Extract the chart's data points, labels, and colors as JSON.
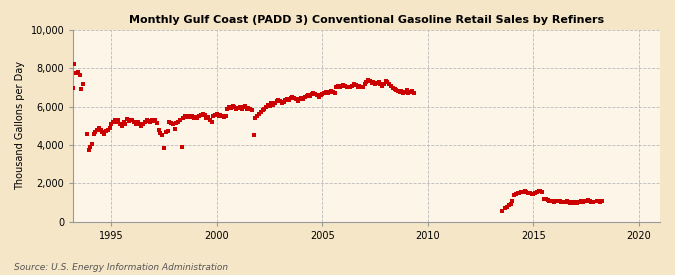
{
  "title": "Monthly Gulf Coast (PADD 3) Conventional Gasoline Retail Sales by Refiners",
  "ylabel": "Thousand Gallons per Day",
  "source": "Source: U.S. Energy Information Administration",
  "background_color": "#f5e6c8",
  "plot_bg_color": "#fdf6e8",
  "marker_color": "#cc0000",
  "ylim": [
    0,
    10000
  ],
  "yticks": [
    0,
    2000,
    4000,
    6000,
    8000,
    10000
  ],
  "ytick_labels": [
    "0",
    "2,000",
    "4,000",
    "6,000",
    "8,000",
    "10,000"
  ],
  "xticks": [
    1995,
    2000,
    2005,
    2010,
    2015,
    2020
  ],
  "xlim": [
    1993.2,
    2021.0
  ],
  "data": [
    [
      1993.17,
      6950
    ],
    [
      1993.25,
      8200
    ],
    [
      1993.33,
      7750
    ],
    [
      1993.42,
      7800
    ],
    [
      1993.5,
      7650
    ],
    [
      1993.58,
      6900
    ],
    [
      1993.67,
      7200
    ],
    [
      1993.83,
      4550
    ],
    [
      1993.92,
      3750
    ],
    [
      1994.0,
      3900
    ],
    [
      1994.08,
      4050
    ],
    [
      1994.17,
      4600
    ],
    [
      1994.25,
      4700
    ],
    [
      1994.33,
      4800
    ],
    [
      1994.42,
      4900
    ],
    [
      1994.5,
      4800
    ],
    [
      1994.58,
      4700
    ],
    [
      1994.67,
      4600
    ],
    [
      1994.75,
      4750
    ],
    [
      1994.83,
      4800
    ],
    [
      1994.92,
      4900
    ],
    [
      1995.0,
      5100
    ],
    [
      1995.08,
      5200
    ],
    [
      1995.17,
      5300
    ],
    [
      1995.25,
      5200
    ],
    [
      1995.33,
      5300
    ],
    [
      1995.42,
      5100
    ],
    [
      1995.5,
      5000
    ],
    [
      1995.58,
      5200
    ],
    [
      1995.67,
      5100
    ],
    [
      1995.75,
      5350
    ],
    [
      1995.83,
      5250
    ],
    [
      1995.92,
      5300
    ],
    [
      1996.0,
      5300
    ],
    [
      1996.08,
      5200
    ],
    [
      1996.17,
      5100
    ],
    [
      1996.25,
      5200
    ],
    [
      1996.33,
      5100
    ],
    [
      1996.42,
      5000
    ],
    [
      1996.5,
      5100
    ],
    [
      1996.58,
      5200
    ],
    [
      1996.67,
      5300
    ],
    [
      1996.75,
      5250
    ],
    [
      1996.83,
      5200
    ],
    [
      1996.92,
      5300
    ],
    [
      1997.0,
      5250
    ],
    [
      1997.08,
      5300
    ],
    [
      1997.17,
      5150
    ],
    [
      1997.25,
      4800
    ],
    [
      1997.33,
      4650
    ],
    [
      1997.42,
      4500
    ],
    [
      1997.5,
      3850
    ],
    [
      1997.58,
      4700
    ],
    [
      1997.67,
      4750
    ],
    [
      1997.75,
      5200
    ],
    [
      1997.83,
      5150
    ],
    [
      1997.92,
      5100
    ],
    [
      1998.0,
      4850
    ],
    [
      1998.08,
      5150
    ],
    [
      1998.17,
      5200
    ],
    [
      1998.25,
      5300
    ],
    [
      1998.33,
      3900
    ],
    [
      1998.42,
      5400
    ],
    [
      1998.5,
      5500
    ],
    [
      1998.58,
      5450
    ],
    [
      1998.67,
      5500
    ],
    [
      1998.75,
      5450
    ],
    [
      1998.83,
      5500
    ],
    [
      1998.92,
      5400
    ],
    [
      1999.0,
      5450
    ],
    [
      1999.08,
      5400
    ],
    [
      1999.17,
      5500
    ],
    [
      1999.25,
      5550
    ],
    [
      1999.33,
      5600
    ],
    [
      1999.42,
      5550
    ],
    [
      1999.5,
      5400
    ],
    [
      1999.58,
      5450
    ],
    [
      1999.67,
      5300
    ],
    [
      1999.75,
      5200
    ],
    [
      1999.83,
      5500
    ],
    [
      1999.92,
      5550
    ],
    [
      2000.0,
      5600
    ],
    [
      2000.08,
      5500
    ],
    [
      2000.17,
      5550
    ],
    [
      2000.25,
      5500
    ],
    [
      2000.33,
      5450
    ],
    [
      2000.42,
      5500
    ],
    [
      2000.5,
      5900
    ],
    [
      2000.58,
      6000
    ],
    [
      2000.67,
      5950
    ],
    [
      2000.75,
      6050
    ],
    [
      2000.83,
      6000
    ],
    [
      2000.92,
      5900
    ],
    [
      2001.0,
      5950
    ],
    [
      2001.08,
      6000
    ],
    [
      2001.17,
      5900
    ],
    [
      2001.25,
      6000
    ],
    [
      2001.33,
      6050
    ],
    [
      2001.42,
      5900
    ],
    [
      2001.5,
      5950
    ],
    [
      2001.58,
      5900
    ],
    [
      2001.67,
      5800
    ],
    [
      2001.75,
      4500
    ],
    [
      2001.83,
      5400
    ],
    [
      2001.92,
      5500
    ],
    [
      2002.0,
      5600
    ],
    [
      2002.08,
      5700
    ],
    [
      2002.17,
      5800
    ],
    [
      2002.25,
      5900
    ],
    [
      2002.33,
      6000
    ],
    [
      2002.42,
      6100
    ],
    [
      2002.5,
      6050
    ],
    [
      2002.58,
      6200
    ],
    [
      2002.67,
      6100
    ],
    [
      2002.75,
      6200
    ],
    [
      2002.83,
      6300
    ],
    [
      2002.92,
      6350
    ],
    [
      2003.0,
      6300
    ],
    [
      2003.08,
      6200
    ],
    [
      2003.17,
      6250
    ],
    [
      2003.25,
      6350
    ],
    [
      2003.33,
      6400
    ],
    [
      2003.42,
      6350
    ],
    [
      2003.5,
      6450
    ],
    [
      2003.58,
      6500
    ],
    [
      2003.67,
      6450
    ],
    [
      2003.75,
      6400
    ],
    [
      2003.83,
      6300
    ],
    [
      2003.92,
      6400
    ],
    [
      2004.0,
      6450
    ],
    [
      2004.08,
      6400
    ],
    [
      2004.17,
      6500
    ],
    [
      2004.25,
      6550
    ],
    [
      2004.33,
      6600
    ],
    [
      2004.42,
      6550
    ],
    [
      2004.5,
      6650
    ],
    [
      2004.58,
      6700
    ],
    [
      2004.67,
      6650
    ],
    [
      2004.75,
      6600
    ],
    [
      2004.83,
      6500
    ],
    [
      2004.92,
      6600
    ],
    [
      2005.0,
      6650
    ],
    [
      2005.08,
      6700
    ],
    [
      2005.17,
      6750
    ],
    [
      2005.25,
      6700
    ],
    [
      2005.33,
      6750
    ],
    [
      2005.42,
      6800
    ],
    [
      2005.5,
      6750
    ],
    [
      2005.58,
      6700
    ],
    [
      2005.67,
      7050
    ],
    [
      2005.75,
      7100
    ],
    [
      2005.83,
      7050
    ],
    [
      2005.92,
      7100
    ],
    [
      2006.0,
      7150
    ],
    [
      2006.08,
      7100
    ],
    [
      2006.17,
      7050
    ],
    [
      2006.25,
      7000
    ],
    [
      2006.33,
      7050
    ],
    [
      2006.42,
      7100
    ],
    [
      2006.5,
      7200
    ],
    [
      2006.58,
      7150
    ],
    [
      2006.67,
      7050
    ],
    [
      2006.75,
      7100
    ],
    [
      2006.83,
      7000
    ],
    [
      2006.92,
      7050
    ],
    [
      2007.0,
      7200
    ],
    [
      2007.08,
      7300
    ],
    [
      2007.17,
      7400
    ],
    [
      2007.25,
      7350
    ],
    [
      2007.33,
      7250
    ],
    [
      2007.42,
      7300
    ],
    [
      2007.5,
      7200
    ],
    [
      2007.58,
      7250
    ],
    [
      2007.67,
      7300
    ],
    [
      2007.75,
      7200
    ],
    [
      2007.83,
      7100
    ],
    [
      2007.92,
      7200
    ],
    [
      2008.0,
      7350
    ],
    [
      2008.08,
      7300
    ],
    [
      2008.17,
      7200
    ],
    [
      2008.25,
      7100
    ],
    [
      2008.33,
      6950
    ],
    [
      2008.42,
      6900
    ],
    [
      2008.5,
      6850
    ],
    [
      2008.58,
      6800
    ],
    [
      2008.67,
      6750
    ],
    [
      2008.75,
      6800
    ],
    [
      2008.83,
      6700
    ],
    [
      2008.92,
      6750
    ],
    [
      2009.0,
      6850
    ],
    [
      2009.08,
      6700
    ],
    [
      2009.17,
      6750
    ],
    [
      2009.25,
      6800
    ],
    [
      2009.33,
      6700
    ],
    [
      2013.5,
      550
    ],
    [
      2013.67,
      700
    ],
    [
      2013.75,
      750
    ],
    [
      2013.83,
      850
    ],
    [
      2013.92,
      900
    ],
    [
      2014.0,
      1100
    ],
    [
      2014.08,
      1400
    ],
    [
      2014.17,
      1450
    ],
    [
      2014.25,
      1500
    ],
    [
      2014.33,
      1500
    ],
    [
      2014.42,
      1550
    ],
    [
      2014.5,
      1550
    ],
    [
      2014.58,
      1600
    ],
    [
      2014.67,
      1550
    ],
    [
      2014.75,
      1500
    ],
    [
      2014.83,
      1500
    ],
    [
      2014.92,
      1450
    ],
    [
      2015.0,
      1450
    ],
    [
      2015.08,
      1500
    ],
    [
      2015.17,
      1550
    ],
    [
      2015.25,
      1600
    ],
    [
      2015.33,
      1600
    ],
    [
      2015.42,
      1550
    ],
    [
      2015.5,
      1200
    ],
    [
      2015.58,
      1200
    ],
    [
      2015.67,
      1150
    ],
    [
      2015.75,
      1100
    ],
    [
      2015.83,
      1100
    ],
    [
      2015.92,
      1100
    ],
    [
      2016.0,
      1050
    ],
    [
      2016.08,
      1100
    ],
    [
      2016.17,
      1100
    ],
    [
      2016.25,
      1100
    ],
    [
      2016.33,
      1050
    ],
    [
      2016.42,
      1050
    ],
    [
      2016.5,
      1050
    ],
    [
      2016.58,
      1100
    ],
    [
      2016.67,
      1050
    ],
    [
      2016.75,
      1000
    ],
    [
      2016.83,
      1050
    ],
    [
      2016.92,
      1000
    ],
    [
      2017.0,
      1050
    ],
    [
      2017.08,
      1000
    ],
    [
      2017.17,
      1050
    ],
    [
      2017.25,
      1100
    ],
    [
      2017.33,
      1050
    ],
    [
      2017.42,
      1100
    ],
    [
      2017.5,
      1100
    ],
    [
      2017.58,
      1150
    ],
    [
      2017.67,
      1100
    ],
    [
      2017.75,
      1050
    ],
    [
      2017.83,
      1050
    ],
    [
      2018.0,
      1100
    ],
    [
      2018.08,
      1100
    ],
    [
      2018.17,
      1050
    ],
    [
      2018.25,
      1100
    ]
  ]
}
